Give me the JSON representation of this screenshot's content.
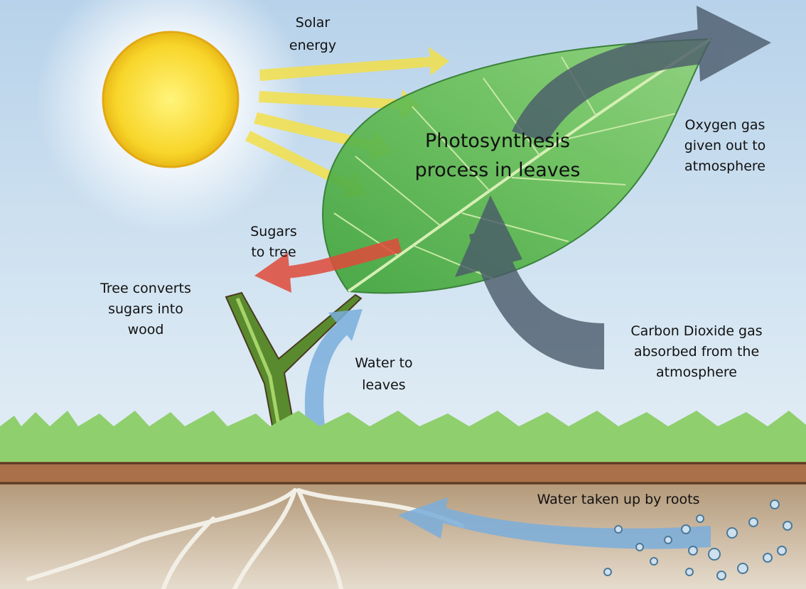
{
  "labels": {
    "solar_energy": [
      "Solar",
      "energy"
    ],
    "photosynthesis": [
      "Photosynthesis",
      "process in leaves"
    ],
    "oxygen": [
      "Oxygen gas",
      "given out to",
      "atmosphere"
    ],
    "sugars": [
      "Sugars",
      "to tree"
    ],
    "tree_converts": [
      "Tree converts",
      "sugars into",
      "wood"
    ],
    "water_to_leaves": [
      "Water to",
      "leaves"
    ],
    "carbon_dioxide": [
      "Carbon Dioxide gas",
      "absorbed from the",
      "atmosphere"
    ],
    "water_roots": [
      "Water taken up by roots"
    ]
  }
}
